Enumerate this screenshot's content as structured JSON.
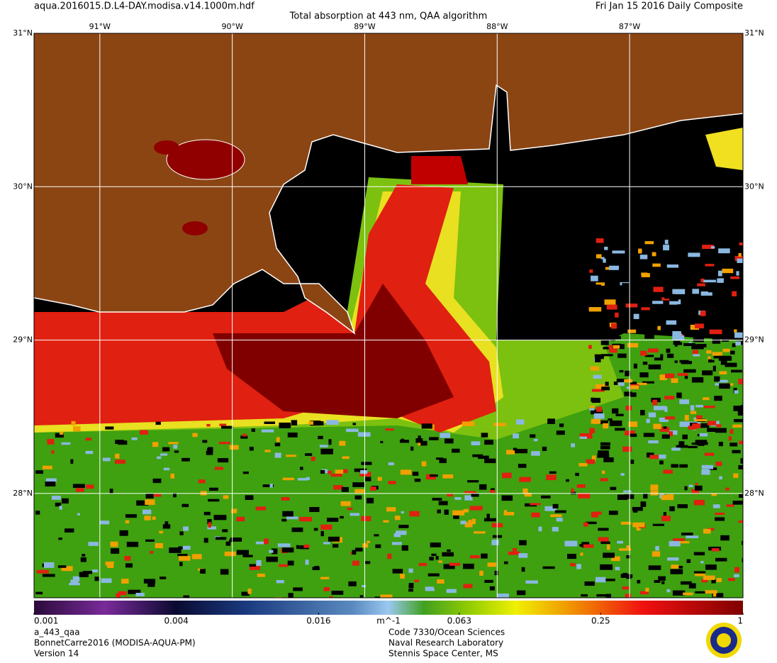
{
  "header": {
    "file": "aqua.2016015.D.L4-DAY.modisa.v14.1000m.hdf",
    "title": "Total absorption at 443 nm, QAA algorithm",
    "date": "Fri Jan 15 2016 Daily Composite"
  },
  "map": {
    "lon_range": [
      -91.497,
      -86.144
    ],
    "lat_range": [
      27.32,
      31.0
    ],
    "lon_ticks": [
      {
        "value": -91,
        "label": "91°W"
      },
      {
        "value": -90,
        "label": "90°W"
      },
      {
        "value": -89,
        "label": "89°W"
      },
      {
        "value": -88,
        "label": "88°W"
      },
      {
        "value": -87,
        "label": "87°W"
      }
    ],
    "lat_ticks": [
      {
        "value": 31,
        "label": "31°N"
      },
      {
        "value": 30,
        "label": "30°N"
      },
      {
        "value": 29,
        "label": "29°N"
      },
      {
        "value": 28,
        "label": "28°N"
      }
    ]
  },
  "colorbar": {
    "range": [
      0.001,
      1
    ],
    "log": true,
    "ticks": [
      0.001,
      0.004,
      0.016,
      0.063,
      0.25,
      1
    ],
    "unit": "m^-1"
  },
  "footer": {
    "left": [
      "a_443_qaa",
      "BonnetCarre2016 (MODISA-AQUA-PM)",
      "Version 14"
    ],
    "center": [
      "Code 7330/Ocean Sciences",
      "Naval Research Laboratory",
      "Stennis Space Center, MS"
    ]
  }
}
